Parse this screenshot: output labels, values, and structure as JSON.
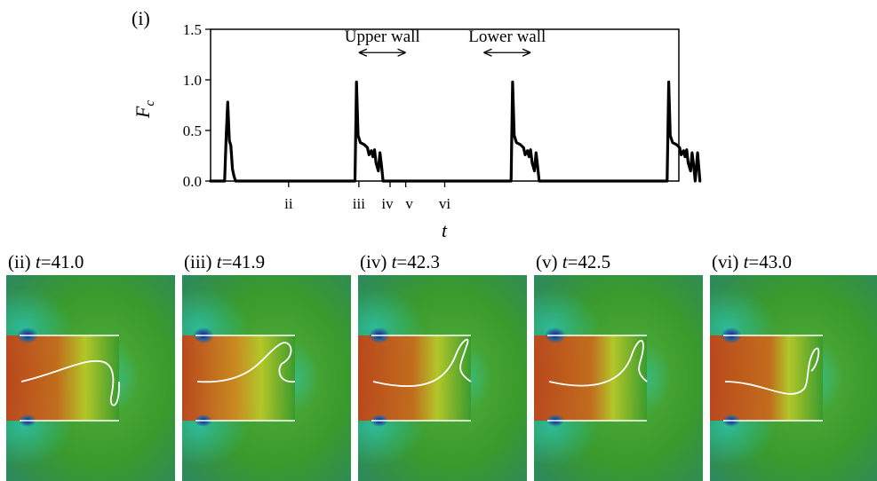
{
  "figure_label": "(i)",
  "chart_data": {
    "type": "line",
    "title": "",
    "xlabel": "t",
    "ylabel": "F_c",
    "ylabel_base": "F",
    "ylabel_sub": "c",
    "ylim": [
      0.0,
      1.5
    ],
    "xlim": [
      40.0,
      46.0
    ],
    "yticks": [
      "0.0",
      "0.5",
      "1.0",
      "1.5"
    ],
    "ytick_values": [
      0.0,
      0.5,
      1.0,
      1.5
    ],
    "grid": false,
    "xtick_marks": [
      {
        "label": "ii",
        "t": 41.0
      },
      {
        "label": "iii",
        "t": 41.9
      },
      {
        "label": "iv",
        "t": 42.3
      },
      {
        "label": "v",
        "t": 42.5
      },
      {
        "label": "vi",
        "t": 43.0
      }
    ],
    "annotations": [
      {
        "text": "Upper wall",
        "arrow_from": 41.9,
        "arrow_to": 42.5
      },
      {
        "text": "Lower wall",
        "arrow_from": 43.5,
        "arrow_to": 44.1
      }
    ],
    "series": [
      {
        "color": "#000000",
        "x": [
          40.0,
          40.18,
          40.2,
          40.22,
          40.24,
          40.26,
          40.28,
          40.3,
          40.32,
          40.34,
          41.85,
          41.87,
          41.89,
          41.92,
          41.97,
          42.01,
          42.03,
          42.06,
          42.08,
          42.1,
          42.12,
          42.15,
          42.17,
          42.19,
          42.21,
          42.25,
          42.27,
          42.3,
          42.33,
          42.35,
          42.38,
          42.4,
          42.42,
          42.44,
          42.46,
          43.85,
          43.87,
          43.89,
          43.92,
          43.97,
          44.01,
          44.03,
          44.06,
          44.08,
          44.1,
          44.12,
          44.15,
          44.17,
          44.19,
          44.21,
          44.25,
          44.27,
          44.3,
          44.33,
          44.35,
          44.38,
          44.4,
          44.42,
          44.44,
          44.46,
          45.85,
          45.87,
          45.89,
          45.92,
          45.97,
          46.01,
          46.03,
          46.06,
          46.08,
          46.1,
          46.12,
          46.15,
          46.17,
          46.19,
          46.21,
          46.24,
          46.27
        ],
        "y": [
          0.0,
          0.0,
          0.45,
          0.78,
          0.4,
          0.35,
          0.12,
          0.05,
          0.0,
          0.0,
          0.0,
          0.98,
          0.45,
          0.38,
          0.36,
          0.33,
          0.26,
          0.3,
          0.24,
          0.31,
          0.18,
          0.1,
          0.28,
          0.15,
          0.0,
          0.0,
          0.0,
          0.0,
          0.0,
          0.0,
          0.0,
          0.0,
          0.0,
          0.0,
          0.0,
          0.0,
          0.98,
          0.45,
          0.38,
          0.36,
          0.33,
          0.26,
          0.3,
          0.24,
          0.31,
          0.18,
          0.1,
          0.28,
          0.15,
          0.0,
          0.0,
          0.0,
          0.0,
          0.0,
          0.0,
          0.0,
          0.0,
          0.0,
          0.0,
          0.0,
          0.0,
          0.98,
          0.45,
          0.38,
          0.36,
          0.33,
          0.26,
          0.3,
          0.24,
          0.31,
          0.18,
          0.1,
          0.28,
          0.15,
          0.0,
          0.28,
          0.0
        ]
      }
    ]
  },
  "panels": [
    {
      "roman": "(ii)",
      "t_label": "t",
      "t_value": "=41.0"
    },
    {
      "roman": "(iii)",
      "t_label": "t",
      "t_value": "=41.9"
    },
    {
      "roman": "(iv)",
      "t_label": "t",
      "t_value": "=42.3"
    },
    {
      "roman": "(v)",
      "t_label": "t",
      "t_value": "=42.5"
    },
    {
      "roman": "(vi)",
      "t_label": "t",
      "t_value": "=43.0"
    }
  ],
  "colors": {
    "field_green": "#3a9a2c",
    "field_red": "#c0441a",
    "field_cyan": "#2cc4b0",
    "field_blue": "#1a237e",
    "field_yellow": "#b8c828",
    "interface": "#ffffff"
  }
}
